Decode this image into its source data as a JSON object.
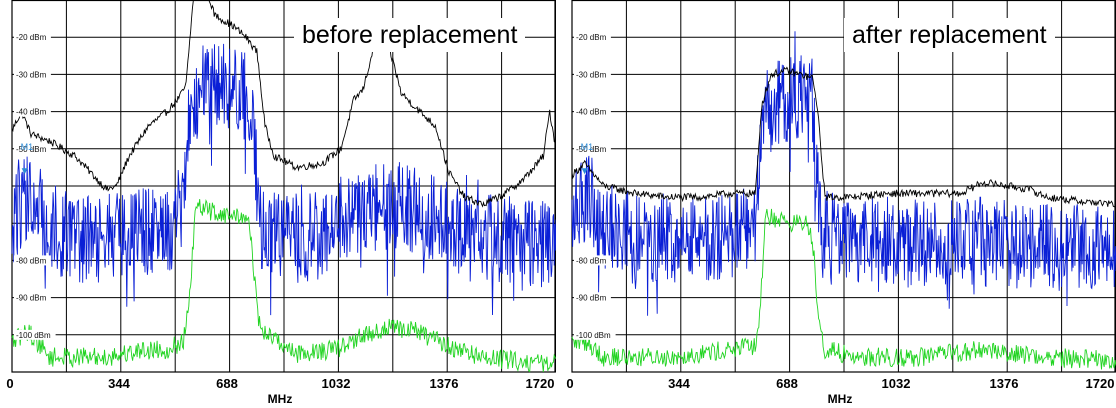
{
  "colors": {
    "max_hold": "#000000",
    "clear_write": "#0a1fd6",
    "average": "#22d422",
    "grid": "#000000",
    "marker": "#2a8ad6"
  },
  "chart_data": [
    {
      "type": "line",
      "title": "before replacement",
      "xlabel": "MHz",
      "ylabel": "",
      "x_ticks": [
        "0",
        "344",
        "688",
        "1032",
        "1376",
        "1720"
      ],
      "xlim": [
        0,
        1720
      ],
      "y_tick_labels": [
        "-20 dBm",
        "-30 dBm",
        "-40 dBm",
        "-50 dBm",
        "-80 dBm",
        "-90 dBm",
        "-100 dBm"
      ],
      "y_tick_values": [
        -20,
        -30,
        -40,
        -50,
        -80,
        -90,
        -100
      ],
      "ylim": [
        -110,
        -10
      ],
      "grid": true,
      "marker_label": "M1",
      "series": [
        {
          "color": "#000000",
          "points": [
            [
              0,
              -45
            ],
            [
              30,
              -40
            ],
            [
              60,
              -46
            ],
            [
              120,
              -48
            ],
            [
              200,
              -52
            ],
            [
              300,
              -61
            ],
            [
              330,
              -60
            ],
            [
              370,
              -52
            ],
            [
              430,
              -44
            ],
            [
              490,
              -40
            ],
            [
              530,
              -36
            ],
            [
              550,
              -33
            ],
            [
              575,
              -8
            ],
            [
              600,
              -3
            ],
            [
              640,
              -14
            ],
            [
              700,
              -17
            ],
            [
              740,
              -20
            ],
            [
              775,
              -24
            ],
            [
              800,
              -44
            ],
            [
              830,
              -52
            ],
            [
              900,
              -55
            ],
            [
              980,
              -54
            ],
            [
              1040,
              -50
            ],
            [
              1080,
              -37
            ],
            [
              1110,
              -34
            ],
            [
              1140,
              -24
            ],
            [
              1180,
              -20
            ],
            [
              1210,
              -28
            ],
            [
              1230,
              -35
            ],
            [
              1290,
              -40
            ],
            [
              1340,
              -44
            ],
            [
              1380,
              -56
            ],
            [
              1430,
              -63
            ],
            [
              1490,
              -65
            ],
            [
              1560,
              -62
            ],
            [
              1620,
              -58
            ],
            [
              1680,
              -52
            ],
            [
              1700,
              -40
            ],
            [
              1720,
              -50
            ]
          ]
        },
        {
          "color": "#0a1fd6",
          "noise_amplitude": 12,
          "points": [
            [
              0,
              -70
            ],
            [
              50,
              -62
            ],
            [
              110,
              -70
            ],
            [
              200,
              -75
            ],
            [
              300,
              -74
            ],
            [
              420,
              -72
            ],
            [
              500,
              -71
            ],
            [
              540,
              -68
            ],
            [
              560,
              -40
            ],
            [
              620,
              -33
            ],
            [
              700,
              -34
            ],
            [
              760,
              -37
            ],
            [
              775,
              -60
            ],
            [
              790,
              -73
            ],
            [
              900,
              -74
            ],
            [
              1000,
              -73
            ],
            [
              1100,
              -68
            ],
            [
              1200,
              -65
            ],
            [
              1260,
              -66
            ],
            [
              1350,
              -70
            ],
            [
              1440,
              -73
            ],
            [
              1560,
              -75
            ],
            [
              1650,
              -76
            ],
            [
              1720,
              -76
            ]
          ]
        },
        {
          "color": "#22d422",
          "points": [
            [
              0,
              -102
            ],
            [
              50,
              -99
            ],
            [
              120,
              -106
            ],
            [
              200,
              -106
            ],
            [
              300,
              -106
            ],
            [
              420,
              -104
            ],
            [
              490,
              -104
            ],
            [
              540,
              -102
            ],
            [
              560,
              -93
            ],
            [
              580,
              -66
            ],
            [
              600,
              -66
            ],
            [
              680,
              -68
            ],
            [
              730,
              -68
            ],
            [
              755,
              -72
            ],
            [
              775,
              -94
            ],
            [
              790,
              -99
            ],
            [
              900,
              -105
            ],
            [
              1020,
              -104
            ],
            [
              1120,
              -100
            ],
            [
              1200,
              -98
            ],
            [
              1280,
              -99
            ],
            [
              1380,
              -103
            ],
            [
              1480,
              -106
            ],
            [
              1600,
              -107
            ],
            [
              1720,
              -108
            ]
          ]
        }
      ]
    },
    {
      "type": "line",
      "title": "after replacement",
      "xlabel": "MHz",
      "ylabel": "",
      "x_ticks": [
        "0",
        "344",
        "688",
        "1032",
        "1376",
        "1720"
      ],
      "xlim": [
        0,
        1720
      ],
      "y_tick_labels": [
        "-20 dBm",
        "-30 dBm",
        "-40 dBm",
        "-50 dBm",
        "-80 dBm",
        "-90 dBm",
        "-100 dBm"
      ],
      "y_tick_values": [
        -20,
        -30,
        -40,
        -50,
        -80,
        -90,
        -100
      ],
      "ylim": [
        -110,
        -10
      ],
      "grid": true,
      "marker_label": "M1",
      "series": [
        {
          "color": "#000000",
          "points": [
            [
              0,
              -57
            ],
            [
              40,
              -54
            ],
            [
              100,
              -60
            ],
            [
              200,
              -62
            ],
            [
              300,
              -63
            ],
            [
              400,
              -63
            ],
            [
              500,
              -62
            ],
            [
              580,
              -62
            ],
            [
              600,
              -38
            ],
            [
              630,
              -30
            ],
            [
              680,
              -29
            ],
            [
              760,
              -31
            ],
            [
              775,
              -38
            ],
            [
              800,
              -63
            ],
            [
              880,
              -63
            ],
            [
              1000,
              -62
            ],
            [
              1120,
              -62
            ],
            [
              1230,
              -62
            ],
            [
              1300,
              -59
            ],
            [
              1380,
              -60
            ],
            [
              1450,
              -61
            ],
            [
              1500,
              -63
            ],
            [
              1600,
              -64
            ],
            [
              1720,
              -65
            ]
          ]
        },
        {
          "color": "#0a1fd6",
          "noise_amplitude": 12,
          "points": [
            [
              0,
              -70
            ],
            [
              50,
              -62
            ],
            [
              100,
              -70
            ],
            [
              200,
              -74
            ],
            [
              300,
              -74
            ],
            [
              400,
              -74
            ],
            [
              500,
              -73
            ],
            [
              580,
              -72
            ],
            [
              600,
              -42
            ],
            [
              660,
              -37
            ],
            [
              760,
              -37
            ],
            [
              775,
              -56
            ],
            [
              790,
              -73
            ],
            [
              900,
              -74
            ],
            [
              1100,
              -75
            ],
            [
              1300,
              -75
            ],
            [
              1500,
              -76
            ],
            [
              1720,
              -77
            ]
          ]
        },
        {
          "color": "#22d422",
          "points": [
            [
              0,
              -102
            ],
            [
              50,
              -102
            ],
            [
              100,
              -106
            ],
            [
              200,
              -106
            ],
            [
              300,
              -106
            ],
            [
              400,
              -105
            ],
            [
              500,
              -104
            ],
            [
              580,
              -103
            ],
            [
              595,
              -95
            ],
            [
              610,
              -68
            ],
            [
              700,
              -70
            ],
            [
              740,
              -70
            ],
            [
              760,
              -74
            ],
            [
              780,
              -95
            ],
            [
              800,
              -104
            ],
            [
              900,
              -106
            ],
            [
              1100,
              -106
            ],
            [
              1300,
              -104
            ],
            [
              1500,
              -106
            ],
            [
              1720,
              -107
            ]
          ]
        }
      ]
    }
  ]
}
